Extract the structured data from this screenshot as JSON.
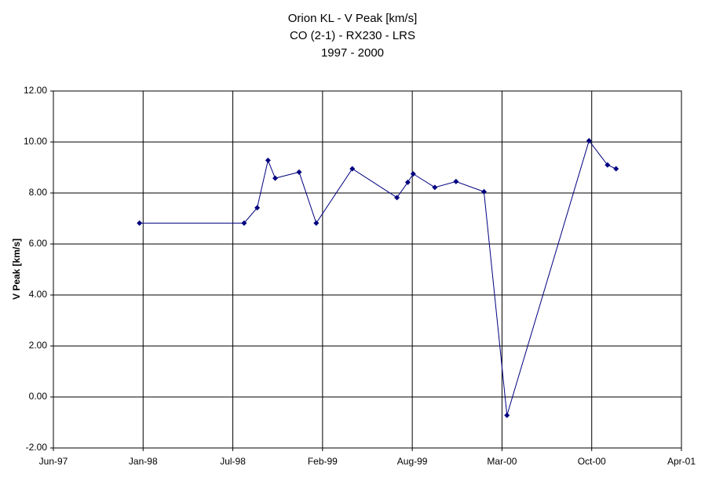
{
  "chart_data": {
    "type": "line",
    "title": "Orion KL - V Peak [km/s]",
    "subtitle": [
      "CO (2-1) - RX230 - LRS",
      "1997 - 2000"
    ],
    "ylabel": "V Peak [km/s]",
    "x": [
      "1998-01-03",
      "1998-08-23",
      "1998-09-21",
      "1998-10-15",
      "1998-10-31",
      "1998-12-23",
      "1999-01-30",
      "1999-04-20",
      "1999-07-28",
      "1999-08-21",
      "1999-09-02",
      "1999-10-20",
      "1999-12-06",
      "2000-02-06",
      "2000-03-28",
      "2000-09-26",
      "2000-11-06",
      "2000-11-25"
    ],
    "series": [
      {
        "color": "#000080",
        "values": [
          6.82,
          6.82,
          7.42,
          9.28,
          8.58,
          8.82,
          6.82,
          8.95,
          7.82,
          8.42,
          8.75,
          8.22,
          8.45,
          8.05,
          -0.72,
          10.05,
          9.1,
          8.95
        ]
      }
    ],
    "xlim": [
      "1997-06-26",
      "2001-04-19"
    ],
    "xticks": [
      {
        "value": "1997-06-26",
        "label": "Jun-97"
      },
      {
        "value": "1998-01-11",
        "label": "Jan-98"
      },
      {
        "value": "1998-07-29",
        "label": "Jul-98"
      },
      {
        "value": "1999-02-13",
        "label": "Feb-99"
      },
      {
        "value": "1999-08-31",
        "label": "Aug-99"
      },
      {
        "value": "2000-03-17",
        "label": "Mar-00"
      },
      {
        "value": "2000-10-02",
        "label": "Oct-00"
      },
      {
        "value": "2001-04-19",
        "label": "Apr-01"
      }
    ],
    "ylim": [
      -2,
      12
    ],
    "yticks": [
      {
        "value": -2,
        "label": "-2.00"
      },
      {
        "value": 0,
        "label": "0.00"
      },
      {
        "value": 2,
        "label": "2.00"
      },
      {
        "value": 4,
        "label": "4.00"
      },
      {
        "value": 6,
        "label": "6.00"
      },
      {
        "value": 8,
        "label": "8.00"
      },
      {
        "value": 10,
        "label": "10.00"
      },
      {
        "value": 12,
        "label": "12.00"
      }
    ],
    "grid": true
  }
}
